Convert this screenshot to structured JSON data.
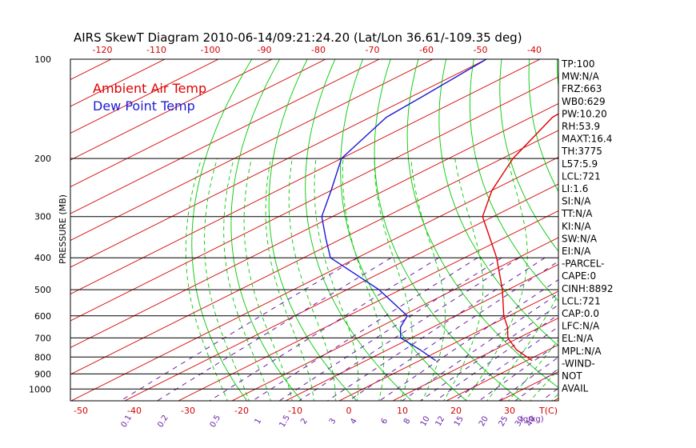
{
  "chart_data": {
    "type": "line",
    "title": "AIRS SkewT Diagram 2010-06-14/09:21:24.20 (Lat/Lon 36.61/-109.35 deg)",
    "ylabel": "PRESSURE (MB)",
    "xlabel": "T(C)",
    "mixing_ratio_label": "(g/kg)",
    "y_scale": "log",
    "ylim": [
      1050,
      100
    ],
    "xlim_bottom": [
      -50,
      40
    ],
    "pressure_ticks": [
      100,
      200,
      300,
      400,
      500,
      600,
      700,
      800,
      900,
      1000
    ],
    "isobar_lines": [
      200,
      300,
      400,
      500,
      600,
      700,
      800,
      900,
      1000
    ],
    "top_temp_ticks": [
      -120,
      -110,
      -100,
      -90,
      -80,
      -70,
      -60,
      -50,
      -40
    ],
    "bottom_temp_ticks": [
      -50,
      -40,
      -30,
      -20,
      -10,
      0,
      10,
      20,
      30
    ],
    "mixing_ratio_ticks": [
      "0.1",
      "0.2",
      "0.5",
      "1",
      "1.5",
      "2",
      "3",
      "4",
      "6",
      "8",
      "10",
      "12",
      "15",
      "20",
      "25",
      "30",
      "40"
    ],
    "series": [
      {
        "name": "Ambient Air Temp",
        "color": "#e00000",
        "pressure": [
          820,
          760,
          700,
          650,
          600,
          500,
          400,
          300,
          250,
          200,
          150,
          130,
          100
        ],
        "temperature": [
          21,
          14,
          8,
          4,
          -1,
          -11,
          -24,
          -42,
          -50,
          -58,
          -66,
          -67,
          -67
        ]
      },
      {
        "name": "Dew Point Temp",
        "color": "#1a1ad6",
        "pressure": [
          820,
          760,
          700,
          650,
          600,
          500,
          400,
          350,
          300,
          250,
          200,
          150,
          130,
          100
        ],
        "temperature": [
          3,
          -4,
          -12,
          -16,
          -19,
          -34,
          -55,
          -63,
          -72,
          -80,
          -90,
          -97,
          -98,
          -100
        ]
      }
    ],
    "stats": [
      "TP:100",
      "MW:N/A",
      "FRZ:663",
      "WB0:629",
      "PW:10.20",
      "RH:53.9",
      "MAXT:16.4",
      "TH:3775",
      "L57:5.9",
      "LCL:721",
      "LI:1.6",
      "SI:N/A",
      "TT:N/A",
      "KI:N/A",
      "SW:N/A",
      "EI:N/A",
      "-PARCEL-",
      "CAPE:0",
      "CINH:8892",
      "LCL:721",
      "CAP:0.0",
      "LFC:N/A",
      "EL:N/A",
      "MPL:N/A",
      "-WIND-",
      "NOT",
      "AVAIL"
    ],
    "colors": {
      "isotherm": "#d40000",
      "dry_adiabat": "#00c800",
      "moist_adiabat": "#00c800",
      "mixing_ratio": "#6a1fa6",
      "isobar": "#000000"
    }
  }
}
